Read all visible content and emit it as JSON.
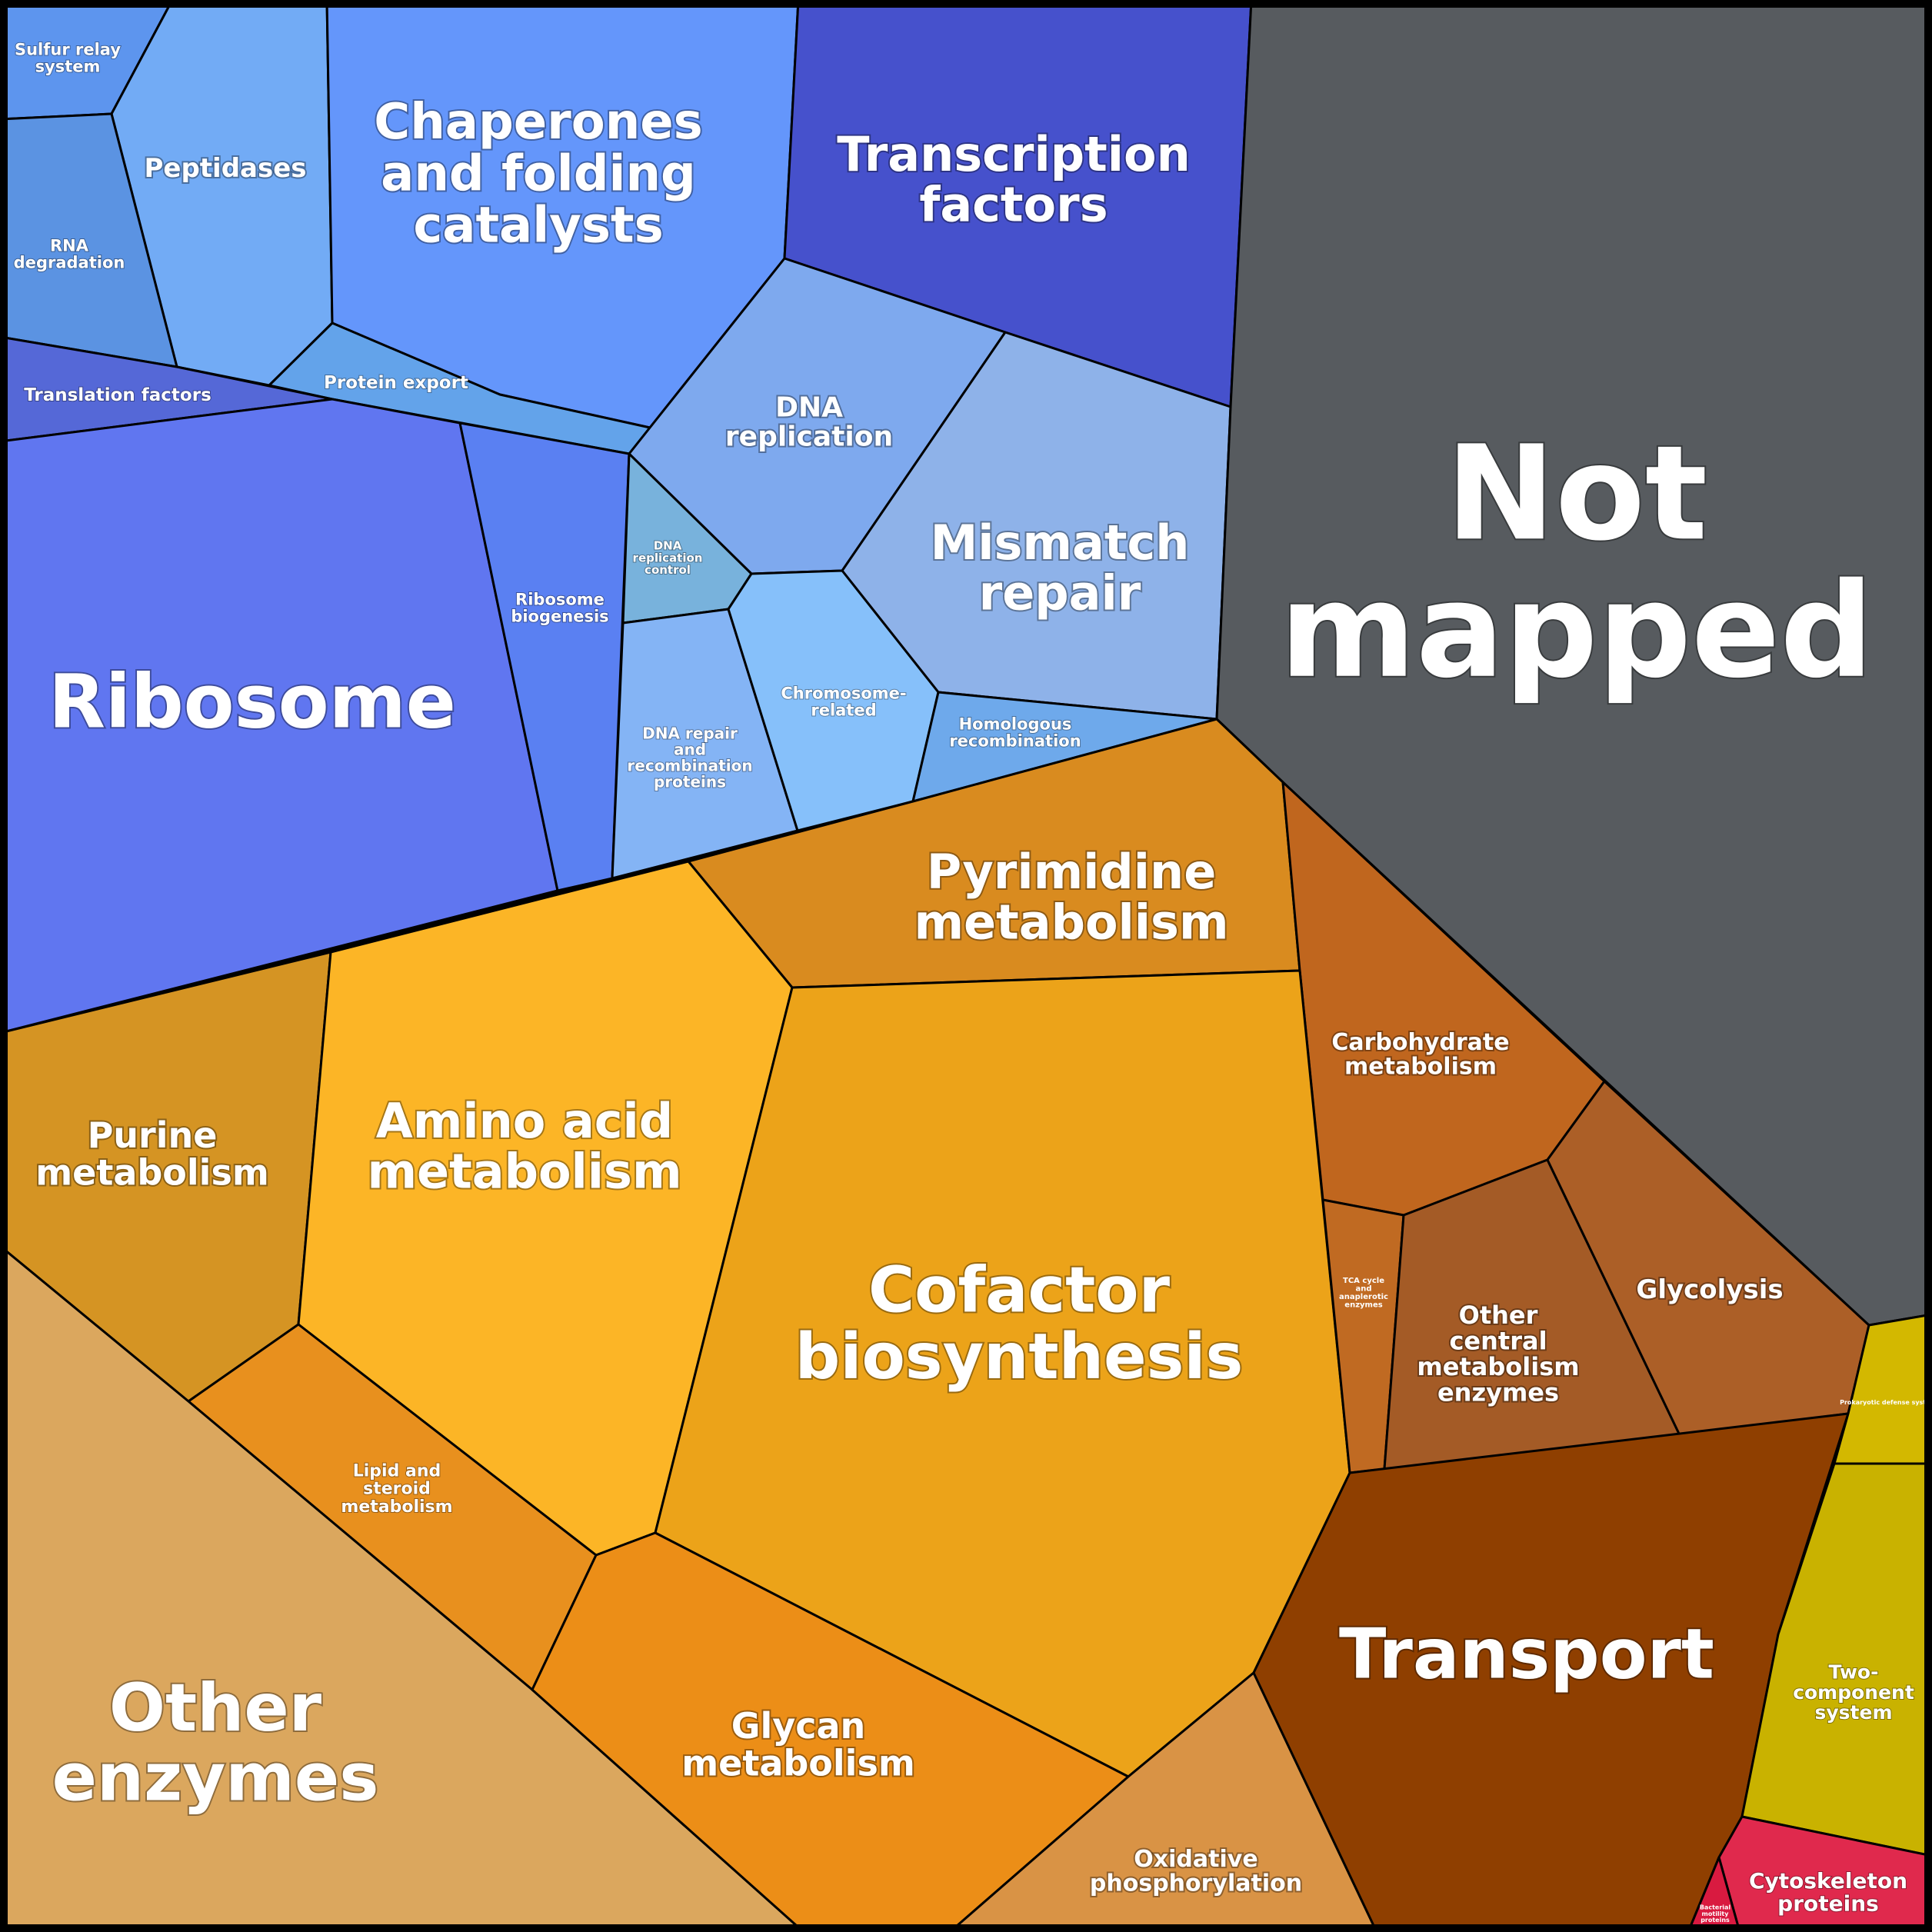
{
  "cells": [
    {
      "id": "sulfur-relay-system",
      "lines": [
        "Sulfur relay",
        "system"
      ],
      "color": "#5d95ee"
    },
    {
      "id": "peptidases",
      "lines": [
        "Peptidases"
      ],
      "color": "#72abf5"
    },
    {
      "id": "chaperones-and-folding-catalysts",
      "lines": [
        "Chaperones",
        "and folding",
        "catalysts"
      ],
      "color": "#6496fb"
    },
    {
      "id": "transcription-factors",
      "lines": [
        "Transcription",
        "factors"
      ],
      "color": "#4651cc"
    },
    {
      "id": "rna-degradation",
      "lines": [
        "RNA",
        "degradation"
      ],
      "color": "#5b93e2"
    },
    {
      "id": "protein-export",
      "lines": [
        "Protein export"
      ],
      "color": "#63a3ea"
    },
    {
      "id": "translation-factors",
      "lines": [
        "Translation factors"
      ],
      "color": "#5568d7"
    },
    {
      "id": "dna-replication",
      "lines": [
        "DNA",
        "replication"
      ],
      "color": "#7ea9ee"
    },
    {
      "id": "mismatch-repair",
      "lines": [
        "Mismatch",
        "repair"
      ],
      "color": "#8eb2e9"
    },
    {
      "id": "ribosome",
      "lines": [
        "Ribosome"
      ],
      "color": "#6076f0"
    },
    {
      "id": "ribosome-biogenesis",
      "lines": [
        "Ribosome",
        "biogenesis"
      ],
      "color": "#5a80f2"
    },
    {
      "id": "dna-replication-control",
      "lines": [
        "DNA",
        "replication",
        "control"
      ],
      "color": "#78b2dc"
    },
    {
      "id": "dna-repair-and-recombination-proteins",
      "lines": [
        "DNA repair",
        "and",
        "recombination",
        "proteins"
      ],
      "color": "#84b4f5"
    },
    {
      "id": "chromosome-related",
      "lines": [
        "Chromosome-",
        "related"
      ],
      "color": "#86c0fa"
    },
    {
      "id": "homologous-recombination",
      "lines": [
        "Homologous",
        "recombination"
      ],
      "color": "#6ea9eb"
    },
    {
      "id": "not-mapped",
      "lines": [
        "Not",
        "mapped"
      ],
      "color": "#575b5f"
    },
    {
      "id": "pyrimidine-metabolism",
      "lines": [
        "Pyrimidine",
        "metabolism"
      ],
      "color": "#d98b1f"
    },
    {
      "id": "carbohydrate-metabolism",
      "lines": [
        "Carbohydrate",
        "metabolism"
      ],
      "color": "#c0661e"
    },
    {
      "id": "purine-metabolism",
      "lines": [
        "Purine",
        "metabolism"
      ],
      "color": "#d59423"
    },
    {
      "id": "amino-acid-metabolism",
      "lines": [
        "Amino acid",
        "metabolism"
      ],
      "color": "#fcb526"
    },
    {
      "id": "cofactor-biosynthesis",
      "lines": [
        "Cofactor",
        "biosynthesis"
      ],
      "color": "#eca319"
    },
    {
      "id": "tca-cycle-and-anaplerotic-enzymes",
      "lines": [
        "TCA cycle",
        "and",
        "anaplerotic",
        "enzymes"
      ],
      "color": "#c06a22"
    },
    {
      "id": "other-central-metabolism-enzymes",
      "lines": [
        "Other",
        "central",
        "metabolism",
        "enzymes"
      ],
      "color": "#a45b26"
    },
    {
      "id": "glycolysis",
      "lines": [
        "Glycolysis"
      ],
      "color": "#ac5f27"
    },
    {
      "id": "lipid-and-steroid-metabolism",
      "lines": [
        "Lipid and",
        "steroid",
        "metabolism"
      ],
      "color": "#e8901e"
    },
    {
      "id": "other-enzymes",
      "lines": [
        "Other",
        "enzymes"
      ],
      "color": "#dba75e"
    },
    {
      "id": "glycan-metabolism",
      "lines": [
        "Glycan",
        "metabolism"
      ],
      "color": "#ec8e17"
    },
    {
      "id": "oxidative-phosphorylation",
      "lines": [
        "Oxidative",
        "phosphorylation"
      ],
      "color": "#d99345"
    },
    {
      "id": "transport",
      "lines": [
        "Transport"
      ],
      "color": "#8f3f00"
    },
    {
      "id": "prokaryotic-defense-system",
      "lines": [
        "Prokaryotic defense system"
      ],
      "color": "#d3b800"
    },
    {
      "id": "two-component-system",
      "lines": [
        "Two-",
        "component",
        "system"
      ],
      "color": "#c9b200"
    },
    {
      "id": "cytoskeleton-proteins",
      "lines": [
        "Cytoskeleton",
        "proteins"
      ],
      "color": "#e0294d"
    },
    {
      "id": "bacterial-motility-proteins",
      "lines": [
        "Bacterial",
        "motility",
        "proteins"
      ],
      "color": "#d91a40"
    }
  ]
}
